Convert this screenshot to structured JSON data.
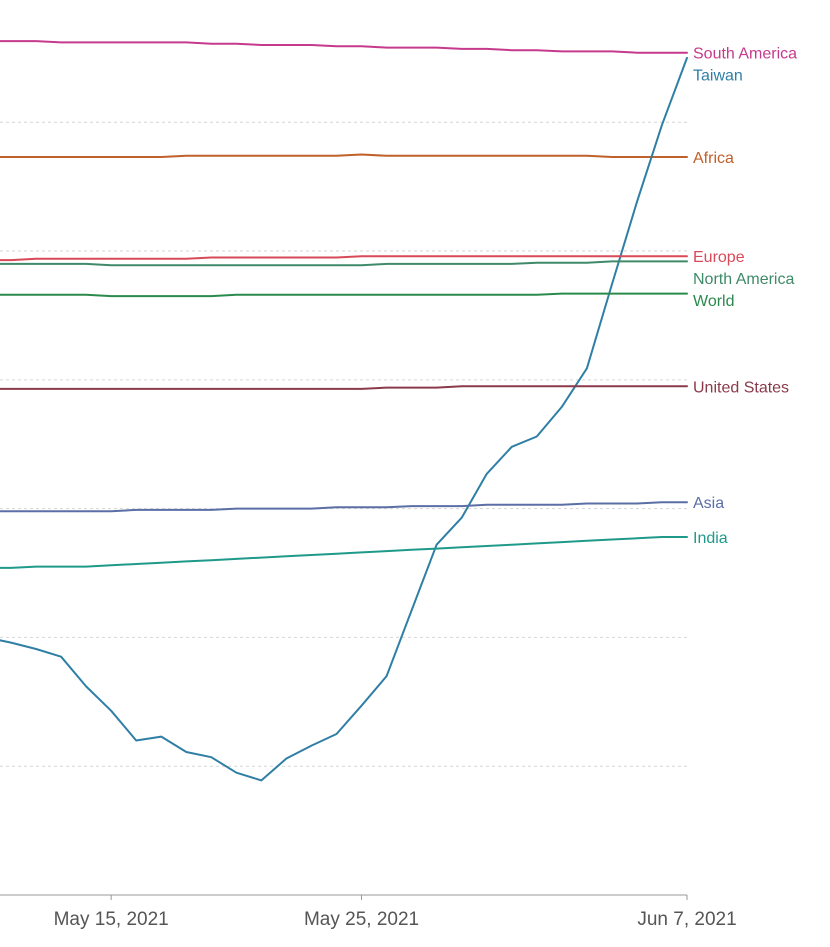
{
  "chart_data": {
    "type": "line",
    "title": "",
    "xlabel": "",
    "ylabel": "",
    "grid": "horizontal-dashed",
    "legend": "inline-right-labels",
    "x": [
      "2021-05-10",
      "2021-05-11",
      "2021-05-12",
      "2021-05-13",
      "2021-05-14",
      "2021-05-15",
      "2021-05-16",
      "2021-05-17",
      "2021-05-18",
      "2021-05-19",
      "2021-05-20",
      "2021-05-21",
      "2021-05-22",
      "2021-05-23",
      "2021-05-24",
      "2021-05-25",
      "2021-05-26",
      "2021-05-27",
      "2021-05-28",
      "2021-05-29",
      "2021-05-30",
      "2021-05-31",
      "2021-06-01",
      "2021-06-02",
      "2021-06-03",
      "2021-06-04",
      "2021-06-05",
      "2021-06-06",
      "2021-06-07"
    ],
    "x_ticks": [
      {
        "date": "2021-05-15",
        "label": "May 15, 2021"
      },
      {
        "date": "2021-05-25",
        "label": "May 25, 2021"
      },
      {
        "date": "2021-06-07",
        "label": "Jun 7, 2021"
      }
    ],
    "y_gridlines": [
      1.0,
      2.0,
      3.0,
      4.0,
      5.0,
      6.0
    ],
    "ylim": [
      0.0,
      6.6
    ],
    "series": [
      {
        "name": "South America",
        "color": "#c53a8c",
        "values": [
          6.63,
          6.63,
          6.63,
          6.62,
          6.62,
          6.62,
          6.62,
          6.62,
          6.62,
          6.61,
          6.61,
          6.6,
          6.6,
          6.6,
          6.59,
          6.59,
          6.58,
          6.58,
          6.58,
          6.57,
          6.57,
          6.56,
          6.56,
          6.55,
          6.55,
          6.55,
          6.54,
          6.54,
          6.54
        ]
      },
      {
        "name": "Africa",
        "color": "#c0602a",
        "values": [
          5.73,
          5.73,
          5.73,
          5.73,
          5.73,
          5.73,
          5.73,
          5.73,
          5.74,
          5.74,
          5.74,
          5.74,
          5.74,
          5.74,
          5.74,
          5.75,
          5.74,
          5.74,
          5.74,
          5.74,
          5.74,
          5.74,
          5.74,
          5.74,
          5.74,
          5.73,
          5.73,
          5.73,
          5.73
        ]
      },
      {
        "name": "Taiwan",
        "color": "#2f7fa5",
        "values": [
          2.0,
          1.96,
          1.91,
          1.85,
          1.62,
          1.43,
          1.2,
          1.23,
          1.11,
          1.07,
          0.95,
          0.89,
          1.06,
          1.16,
          1.25,
          1.47,
          1.7,
          2.21,
          2.72,
          2.93,
          3.27,
          3.48,
          3.56,
          3.79,
          4.09,
          4.74,
          5.38,
          5.98,
          6.5
        ]
      },
      {
        "name": "Europe",
        "color": "#d84a58",
        "values": [
          4.93,
          4.93,
          4.94,
          4.94,
          4.94,
          4.94,
          4.94,
          4.94,
          4.94,
          4.95,
          4.95,
          4.95,
          4.95,
          4.95,
          4.95,
          4.96,
          4.96,
          4.96,
          4.96,
          4.96,
          4.96,
          4.96,
          4.96,
          4.96,
          4.96,
          4.96,
          4.96,
          4.96,
          4.96
        ]
      },
      {
        "name": "North America",
        "color": "#3e8a6a",
        "values": [
          4.9,
          4.9,
          4.9,
          4.9,
          4.9,
          4.89,
          4.89,
          4.89,
          4.89,
          4.89,
          4.89,
          4.89,
          4.89,
          4.89,
          4.89,
          4.89,
          4.9,
          4.9,
          4.9,
          4.9,
          4.9,
          4.9,
          4.91,
          4.91,
          4.91,
          4.92,
          4.92,
          4.92,
          4.92
        ]
      },
      {
        "name": "World",
        "color": "#2a8a4e",
        "values": [
          4.66,
          4.66,
          4.66,
          4.66,
          4.66,
          4.65,
          4.65,
          4.65,
          4.65,
          4.65,
          4.66,
          4.66,
          4.66,
          4.66,
          4.66,
          4.66,
          4.66,
          4.66,
          4.66,
          4.66,
          4.66,
          4.66,
          4.66,
          4.67,
          4.67,
          4.67,
          4.67,
          4.67,
          4.67
        ]
      },
      {
        "name": "United States",
        "color": "#8a3a4a",
        "values": [
          3.93,
          3.93,
          3.93,
          3.93,
          3.93,
          3.93,
          3.93,
          3.93,
          3.93,
          3.93,
          3.93,
          3.93,
          3.93,
          3.93,
          3.93,
          3.93,
          3.94,
          3.94,
          3.94,
          3.95,
          3.95,
          3.95,
          3.95,
          3.95,
          3.95,
          3.95,
          3.95,
          3.95,
          3.95
        ]
      },
      {
        "name": "Asia",
        "color": "#5b6fa6",
        "values": [
          2.98,
          2.98,
          2.98,
          2.98,
          2.98,
          2.98,
          2.99,
          2.99,
          2.99,
          2.99,
          3.0,
          3.0,
          3.0,
          3.0,
          3.01,
          3.01,
          3.01,
          3.02,
          3.02,
          3.02,
          3.03,
          3.03,
          3.03,
          3.03,
          3.04,
          3.04,
          3.04,
          3.05,
          3.05
        ]
      },
      {
        "name": "India",
        "color": "#1f9a8a",
        "values": [
          2.54,
          2.54,
          2.55,
          2.55,
          2.55,
          2.56,
          2.57,
          2.58,
          2.59,
          2.6,
          2.61,
          2.62,
          2.63,
          2.64,
          2.65,
          2.66,
          2.67,
          2.68,
          2.69,
          2.7,
          2.71,
          2.72,
          2.73,
          2.74,
          2.75,
          2.76,
          2.77,
          2.78,
          2.78
        ]
      }
    ]
  }
}
